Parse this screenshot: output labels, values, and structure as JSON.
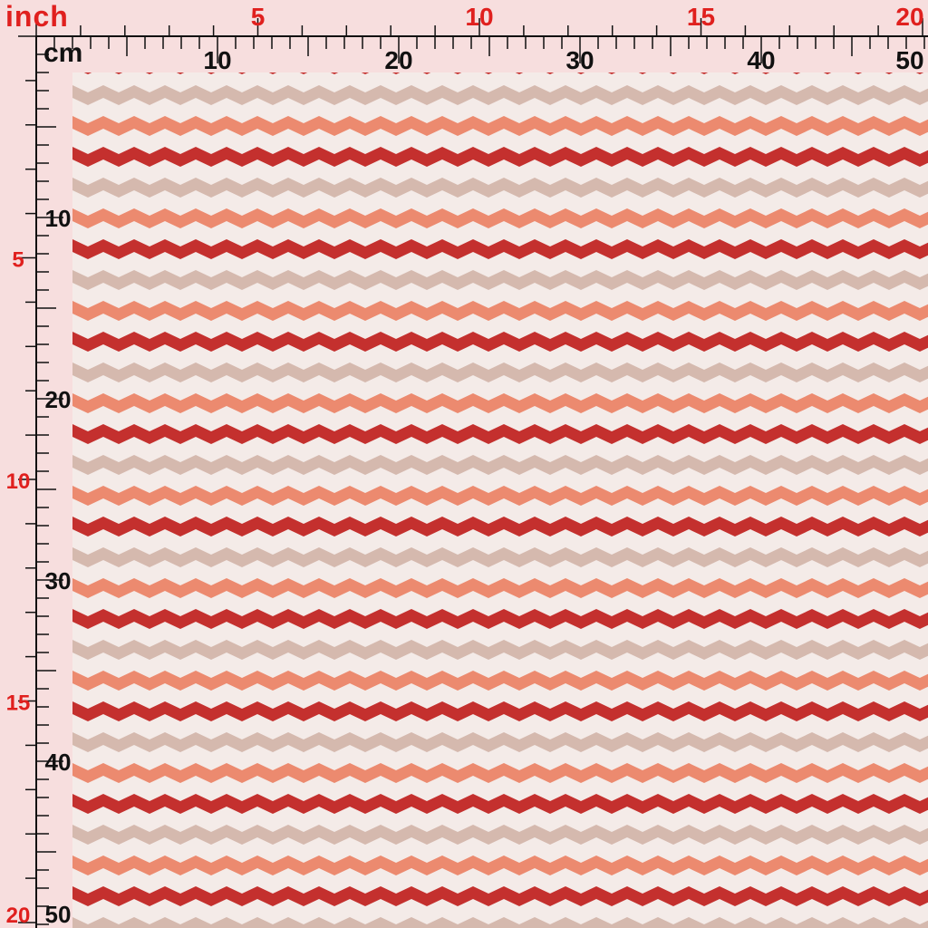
{
  "ruler": {
    "inch_unit": "inch",
    "cm_unit": "cm",
    "top_inch_labels": [
      "5",
      "10",
      "15",
      "20"
    ],
    "top_cm_labels": [
      "10",
      "20",
      "30",
      "40",
      "50"
    ],
    "left_inch_labels": [
      "5",
      "10",
      "15",
      "20"
    ],
    "left_cm_labels": [
      "10",
      "20",
      "30",
      "40",
      "50"
    ]
  },
  "colors": {
    "inch_text": "#e0201e",
    "cm_text": "#111111",
    "ruler_bg": "#f7dede",
    "stripe_red": "#c4302e",
    "stripe_taupe": "#d5b9ae",
    "stripe_coral": "#ec8a6f",
    "stripe_cream": "#f4ebe8"
  },
  "pattern": {
    "name": "zigzag-chevron-stripes",
    "stripe_order": [
      "red",
      "cream",
      "taupe",
      "cream",
      "coral",
      "cream"
    ]
  }
}
